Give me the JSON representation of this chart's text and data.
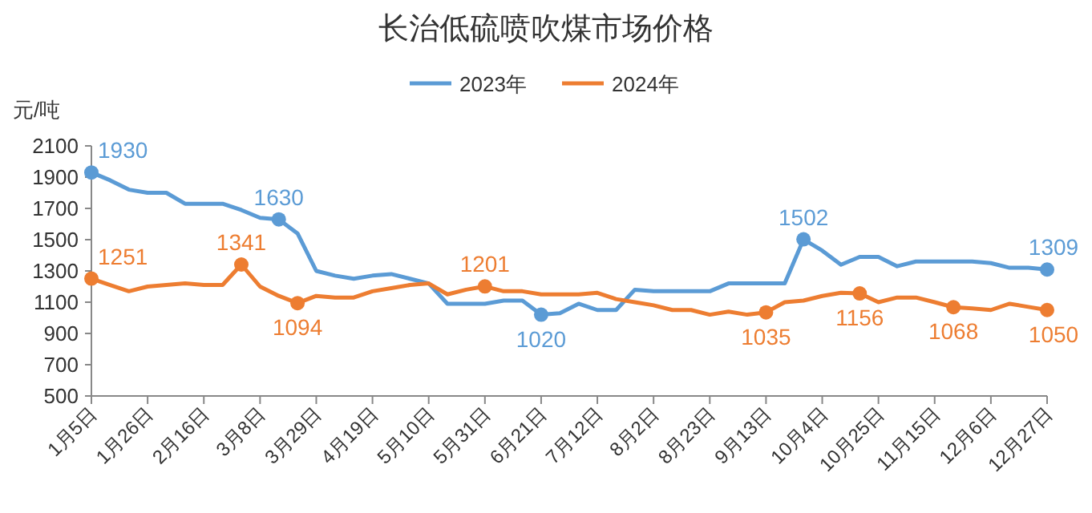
{
  "chart_data": {
    "type": "line",
    "title": "长治低硫喷吹煤市场价格",
    "ylabel": "元/吨",
    "categories": [
      "1月5日",
      null,
      null,
      "1月26日",
      null,
      null,
      "2月16日",
      null,
      null,
      "3月8日",
      null,
      null,
      "3月29日",
      null,
      null,
      "4月19日",
      null,
      null,
      "5月10日",
      null,
      null,
      "5月31日",
      null,
      null,
      "6月21日",
      null,
      null,
      "7月12日",
      null,
      null,
      "8月2日",
      null,
      null,
      "8月23日",
      null,
      null,
      "9月13日",
      null,
      null,
      "10月4日",
      null,
      null,
      "10月25日",
      null,
      null,
      "11月15日",
      null,
      null,
      "12月6日",
      null,
      null,
      "12月27日"
    ],
    "series": [
      {
        "name": "2023年",
        "color": "#5b9bd5",
        "values": [
          1930,
          1880,
          1820,
          1800,
          1800,
          1730,
          1730,
          1730,
          1690,
          1640,
          1630,
          1540,
          1300,
          1270,
          1250,
          1270,
          1280,
          1250,
          1220,
          1090,
          1090,
          1090,
          1110,
          1110,
          1020,
          1030,
          1090,
          1050,
          1050,
          1180,
          1170,
          1170,
          1170,
          1170,
          1220,
          1220,
          1220,
          1220,
          1502,
          1430,
          1340,
          1390,
          1390,
          1330,
          1360,
          1360,
          1360,
          1360,
          1350,
          1320,
          1320,
          1309
        ],
        "value_labels": [
          "1930",
          null,
          null,
          null,
          null,
          null,
          null,
          null,
          null,
          null,
          "1630",
          null,
          null,
          null,
          null,
          null,
          null,
          null,
          null,
          null,
          null,
          null,
          null,
          null,
          "1020",
          null,
          null,
          null,
          null,
          null,
          null,
          null,
          null,
          null,
          null,
          null,
          null,
          null,
          "1502",
          null,
          null,
          null,
          null,
          null,
          null,
          null,
          null,
          null,
          null,
          null,
          null,
          "1309"
        ]
      },
      {
        "name": "2024年",
        "color": "#ed7d31",
        "values": [
          1251,
          1210,
          1170,
          1200,
          1210,
          1220,
          1210,
          1210,
          1341,
          1200,
          1140,
          1094,
          1140,
          1130,
          1130,
          1170,
          1190,
          1210,
          1220,
          1150,
          1180,
          1201,
          1170,
          1170,
          1150,
          1150,
          1150,
          1160,
          1120,
          1100,
          1080,
          1050,
          1050,
          1020,
          1040,
          1020,
          1035,
          1100,
          1110,
          1140,
          1160,
          1156,
          1100,
          1130,
          1130,
          1100,
          1068,
          1060,
          1050,
          1090,
          1070,
          1050
        ],
        "value_labels": [
          "1251",
          null,
          null,
          null,
          null,
          null,
          null,
          null,
          "1341",
          null,
          null,
          "1094",
          null,
          null,
          null,
          null,
          null,
          null,
          null,
          null,
          null,
          "1201",
          null,
          null,
          null,
          null,
          null,
          null,
          null,
          null,
          null,
          null,
          null,
          null,
          null,
          null,
          "1035",
          null,
          null,
          null,
          null,
          "1156",
          null,
          null,
          null,
          null,
          "1068",
          null,
          null,
          null,
          null,
          "1050"
        ]
      }
    ],
    "ylim": [
      500,
      2100
    ],
    "yticks": [
      500,
      700,
      900,
      1100,
      1300,
      1500,
      1700,
      1900,
      2100
    ],
    "legend": "top",
    "grid": false
  }
}
